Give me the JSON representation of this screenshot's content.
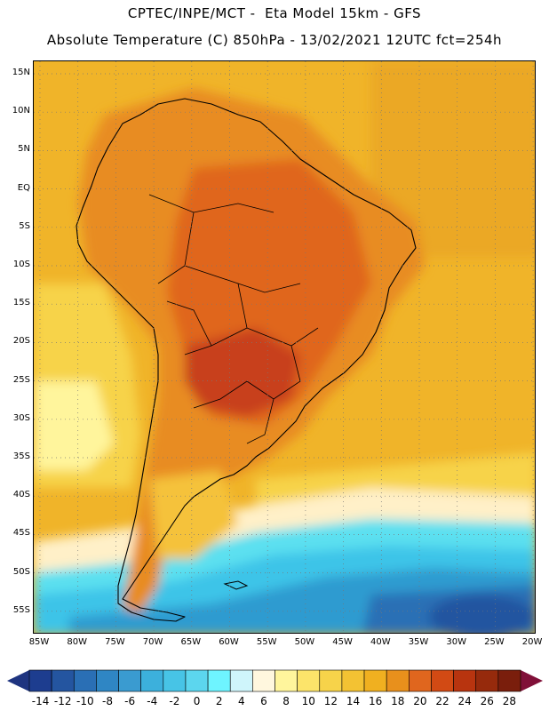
{
  "header": {
    "line1": "CPTEC/INPE/MCT -  Eta Model 15km - GFS",
    "line2": "Absolute Temperature (C) 850hPa - 13/02/2021 12UTC fct=254h"
  },
  "map": {
    "lat_labels": [
      "15N",
      "10N",
      "5N",
      "EQ",
      "5S",
      "10S",
      "15S",
      "20S",
      "25S",
      "30S",
      "35S",
      "40S",
      "45S",
      "50S",
      "55S"
    ],
    "lon_labels": [
      "85W",
      "80W",
      "75W",
      "70W",
      "65W",
      "60W",
      "55W",
      "50W",
      "45W",
      "40W",
      "35W",
      "30W",
      "25W",
      "20W"
    ],
    "grid_style": "dotted",
    "field_colors": {
      "land_hot": "#E0661E",
      "land_warm": "#E88C24",
      "ocean_warm": "#F0B429",
      "ocean_mild": "#F7D34A",
      "patagonia": "#F5C23A",
      "cool_band": "#FFF0C8",
      "cold_1": "#5CE0F0",
      "cold_2": "#3CC4E8",
      "cold_3": "#2D9BD0",
      "cold_4": "#2A6FB5",
      "hot_core": "#C8401A"
    }
  },
  "colorbar": {
    "labels": [
      "-14",
      "-12",
      "-10",
      "-8",
      "-6",
      "-4",
      "-2",
      "0",
      "2",
      "4",
      "6",
      "8",
      "10",
      "12",
      "14",
      "16",
      "18",
      "20",
      "22",
      "24",
      "26",
      "28"
    ],
    "colors": [
      "#1D3D8F",
      "#2455A0",
      "#2A6FB5",
      "#2F86C4",
      "#3A9BD0",
      "#3CB0DC",
      "#47C4E6",
      "#5CD6EE",
      "#6EF4FF",
      "#CFF5FB",
      "#FFF7DE",
      "#FFF59C",
      "#FCE46A",
      "#F7D34A",
      "#F3C233",
      "#F0B020",
      "#E8901C",
      "#E0661E",
      "#D24A14",
      "#B8340F",
      "#962A0C",
      "#7A1E0C"
    ],
    "under_color": "#1E3480",
    "over_color": "#801038"
  }
}
